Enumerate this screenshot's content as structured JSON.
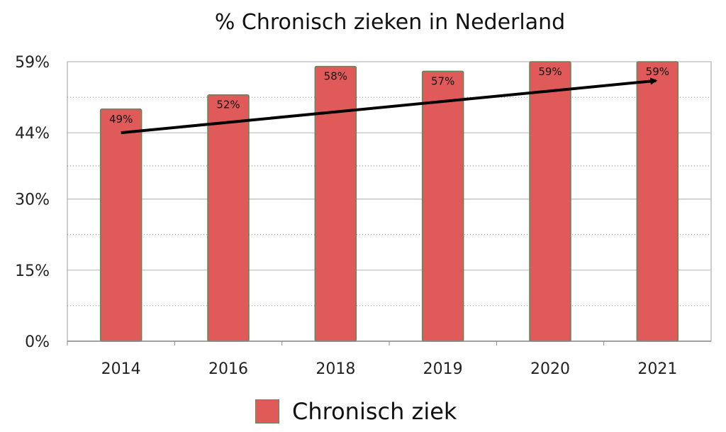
{
  "chart_data": {
    "type": "bar",
    "title": "% Chronisch zieken in Nederland",
    "categories": [
      "2014",
      "2016",
      "2018",
      "2019",
      "2020",
      "2021"
    ],
    "series": [
      {
        "name": "Chronisch ziek",
        "values": [
          49,
          52,
          58,
          57,
          59,
          59
        ]
      }
    ],
    "data_labels": [
      "49%",
      "52%",
      "58%",
      "57%",
      "59%",
      "59%"
    ],
    "y_ticks": [
      0,
      15,
      30,
      44,
      59
    ],
    "y_tick_labels": [
      "0%",
      "15%",
      "30%",
      "44%",
      "59%"
    ],
    "ylim": [
      0,
      59
    ],
    "grid": true,
    "legend_position": "bottom",
    "trend_arrow": {
      "from": {
        "category": "2014",
        "value": 44
      },
      "to": {
        "category": "2021",
        "value": 55
      }
    },
    "colors": {
      "bar": "#E05A5A",
      "bar_border": "#5a8a5a",
      "grid": "#bbbbbb",
      "arrow": "#000000"
    }
  }
}
